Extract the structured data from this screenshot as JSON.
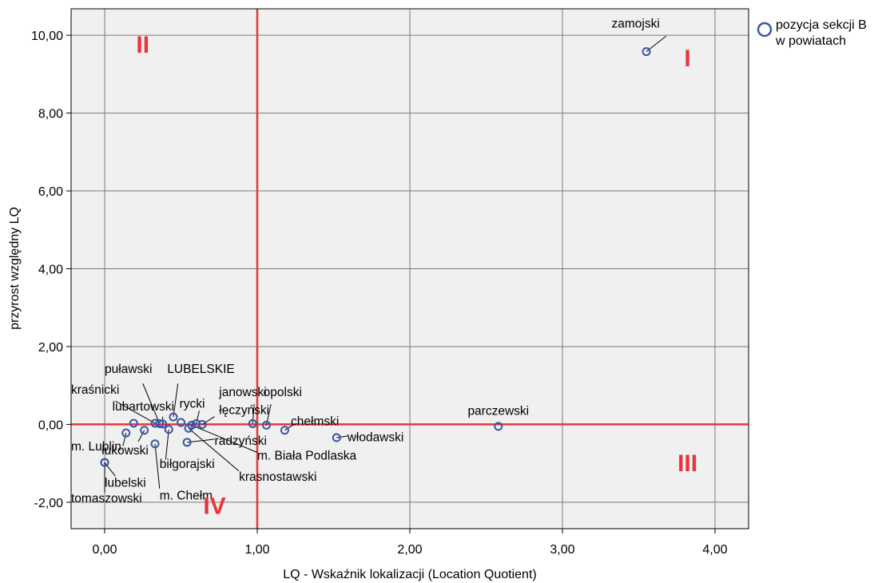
{
  "chart_data": {
    "type": "scatter",
    "xlabel": "LQ - Wskaźnik lokalizacji (Location Quotient)",
    "ylabel": "przyrost względny LQ",
    "xlim": [
      -0.22,
      4.22
    ],
    "ylim": [
      -2.68,
      10.68
    ],
    "x_ticks": [
      0,
      1,
      2,
      3,
      4
    ],
    "x_tick_labels": [
      "0,00",
      "1,00",
      "2,00",
      "3,00",
      "4,00"
    ],
    "y_ticks": [
      -2,
      0,
      2,
      4,
      6,
      8,
      10
    ],
    "y_tick_labels": [
      "-2,00",
      "0,00",
      "2,00",
      "4,00",
      "6,00",
      "8,00",
      "10,00"
    ],
    "grid": true,
    "reference_lines": {
      "x": 1,
      "y": 0,
      "color": "#e8353b"
    },
    "legend": {
      "position": "top-right",
      "line1": "pozycja sekcji B",
      "line2": "w powiatach",
      "marker_color": "#3a55a5"
    },
    "quadrant_labels": [
      {
        "text": "I",
        "x": 3.82,
        "y": 9.2
      },
      {
        "text": "II",
        "x": 0.25,
        "y": 9.55
      },
      {
        "text": "III",
        "x": 3.82,
        "y": -1.2
      },
      {
        "text": "IV",
        "x": 0.72,
        "y": -2.3
      }
    ],
    "points": [
      {
        "name": "zamojski",
        "x": 3.55,
        "y": 9.58,
        "lx": 3.48,
        "ly": 10.2,
        "anchor": "middle",
        "leader": [
          3.68,
          9.98
        ]
      },
      {
        "name": "parczewski",
        "x": 2.58,
        "y": -0.05,
        "lx": 2.58,
        "ly": 0.24,
        "anchor": "middle",
        "leader": null
      },
      {
        "name": "włodawski",
        "x": 1.52,
        "y": -0.34,
        "lx": 1.59,
        "ly": -0.43,
        "anchor": "start",
        "leader": [
          1.59,
          -0.3
        ]
      },
      {
        "name": "chełmski",
        "x": 1.18,
        "y": -0.15,
        "lx": 1.22,
        "ly": -0.02,
        "anchor": "start",
        "leader": [
          1.24,
          0.0
        ]
      },
      {
        "name": "opolski",
        "x": 1.06,
        "y": -0.02,
        "lx": 1.04,
        "ly": 0.73,
        "anchor": "start",
        "leader": [
          1.09,
          0.52
        ]
      },
      {
        "name": "janowski",
        "x": 0.97,
        "y": 0.02,
        "lx": 0.75,
        "ly": 0.73,
        "anchor": "start",
        "leader": [
          0.98,
          0.52
        ]
      },
      {
        "name": "łęczyński",
        "x": 0.64,
        "y": 0.0,
        "lx": 0.75,
        "ly": 0.26,
        "anchor": "start",
        "leader": [
          0.72,
          0.2
        ]
      },
      {
        "name": "rycki",
        "x": 0.6,
        "y": 0.02,
        "lx": 0.49,
        "ly": 0.43,
        "anchor": "start",
        "leader": [
          0.62,
          0.35
        ]
      },
      {
        "name": "radzyński",
        "x": 0.54,
        "y": -0.46,
        "lx": 0.72,
        "ly": -0.53,
        "anchor": "start",
        "leader": [
          0.72,
          -0.38
        ]
      },
      {
        "name": "m. Biała Podlaska",
        "x": 0.57,
        "y": -0.02,
        "lx": 1.0,
        "ly": -0.9,
        "anchor": "start",
        "leader": [
          1.0,
          -0.72
        ]
      },
      {
        "name": "krasnostawski",
        "x": 0.55,
        "y": -0.1,
        "lx": 0.88,
        "ly": -1.45,
        "anchor": "start",
        "leader": [
          0.88,
          -1.2
        ]
      },
      {
        "name": "LUBELSKIE",
        "x": 0.45,
        "y": 0.19,
        "lx": 0.41,
        "ly": 1.32,
        "anchor": "start",
        "leader": [
          0.48,
          1.05
        ]
      },
      {
        "name": "puławski",
        "x": 0.36,
        "y": 0.02,
        "lx": 0.0,
        "ly": 1.32,
        "anchor": "start",
        "leader": [
          0.25,
          1.05
        ]
      },
      {
        "name": "kraśnicki",
        "x": 0.33,
        "y": 0.03,
        "lx": -0.22,
        "ly": 0.79,
        "anchor": "start",
        "leader": [
          0.07,
          0.6
        ]
      },
      {
        "name": "lubartowski",
        "x": 0.38,
        "y": 0.01,
        "lx": 0.05,
        "ly": 0.36,
        "anchor": "start",
        "leader": [
          0.38,
          0.2
        ]
      },
      {
        "name": "m. Lublin",
        "x": 0.26,
        "y": -0.15,
        "lx": -0.22,
        "ly": -0.67,
        "anchor": "start",
        "leader": [
          0.22,
          -0.44
        ]
      },
      {
        "name": "łukowski",
        "x": 0.14,
        "y": -0.22,
        "lx": -0.02,
        "ly": -0.77,
        "anchor": "start",
        "leader": [
          0.12,
          -0.55
        ]
      },
      {
        "name": "biłgorajski",
        "x": 0.42,
        "y": -0.13,
        "lx": 0.36,
        "ly": -1.12,
        "anchor": "start",
        "leader": [
          0.4,
          -0.9
        ]
      },
      {
        "name": "m. Chełm",
        "x": 0.33,
        "y": -0.5,
        "lx": 0.36,
        "ly": -1.93,
        "anchor": "start",
        "leader": [
          0.36,
          -1.65
        ]
      },
      {
        "name": "lubelski",
        "x": 0.0,
        "y": -0.98,
        "lx": 0.0,
        "ly": -1.6,
        "anchor": "start",
        "leader": [
          0.07,
          -1.33
        ]
      },
      {
        "name": "tomaszowski",
        "x": 0.0,
        "y": -0.98,
        "lx": -0.22,
        "ly": -2.0,
        "anchor": "start",
        "leader": [
          0.0,
          -1.75
        ]
      },
      {
        "name": "",
        "x": 0.19,
        "y": 0.03,
        "lx": null,
        "ly": null,
        "anchor": "start",
        "leader": null
      },
      {
        "name": "",
        "x": 0.5,
        "y": 0.05,
        "lx": null,
        "ly": null,
        "anchor": "start",
        "leader": null
      }
    ]
  }
}
